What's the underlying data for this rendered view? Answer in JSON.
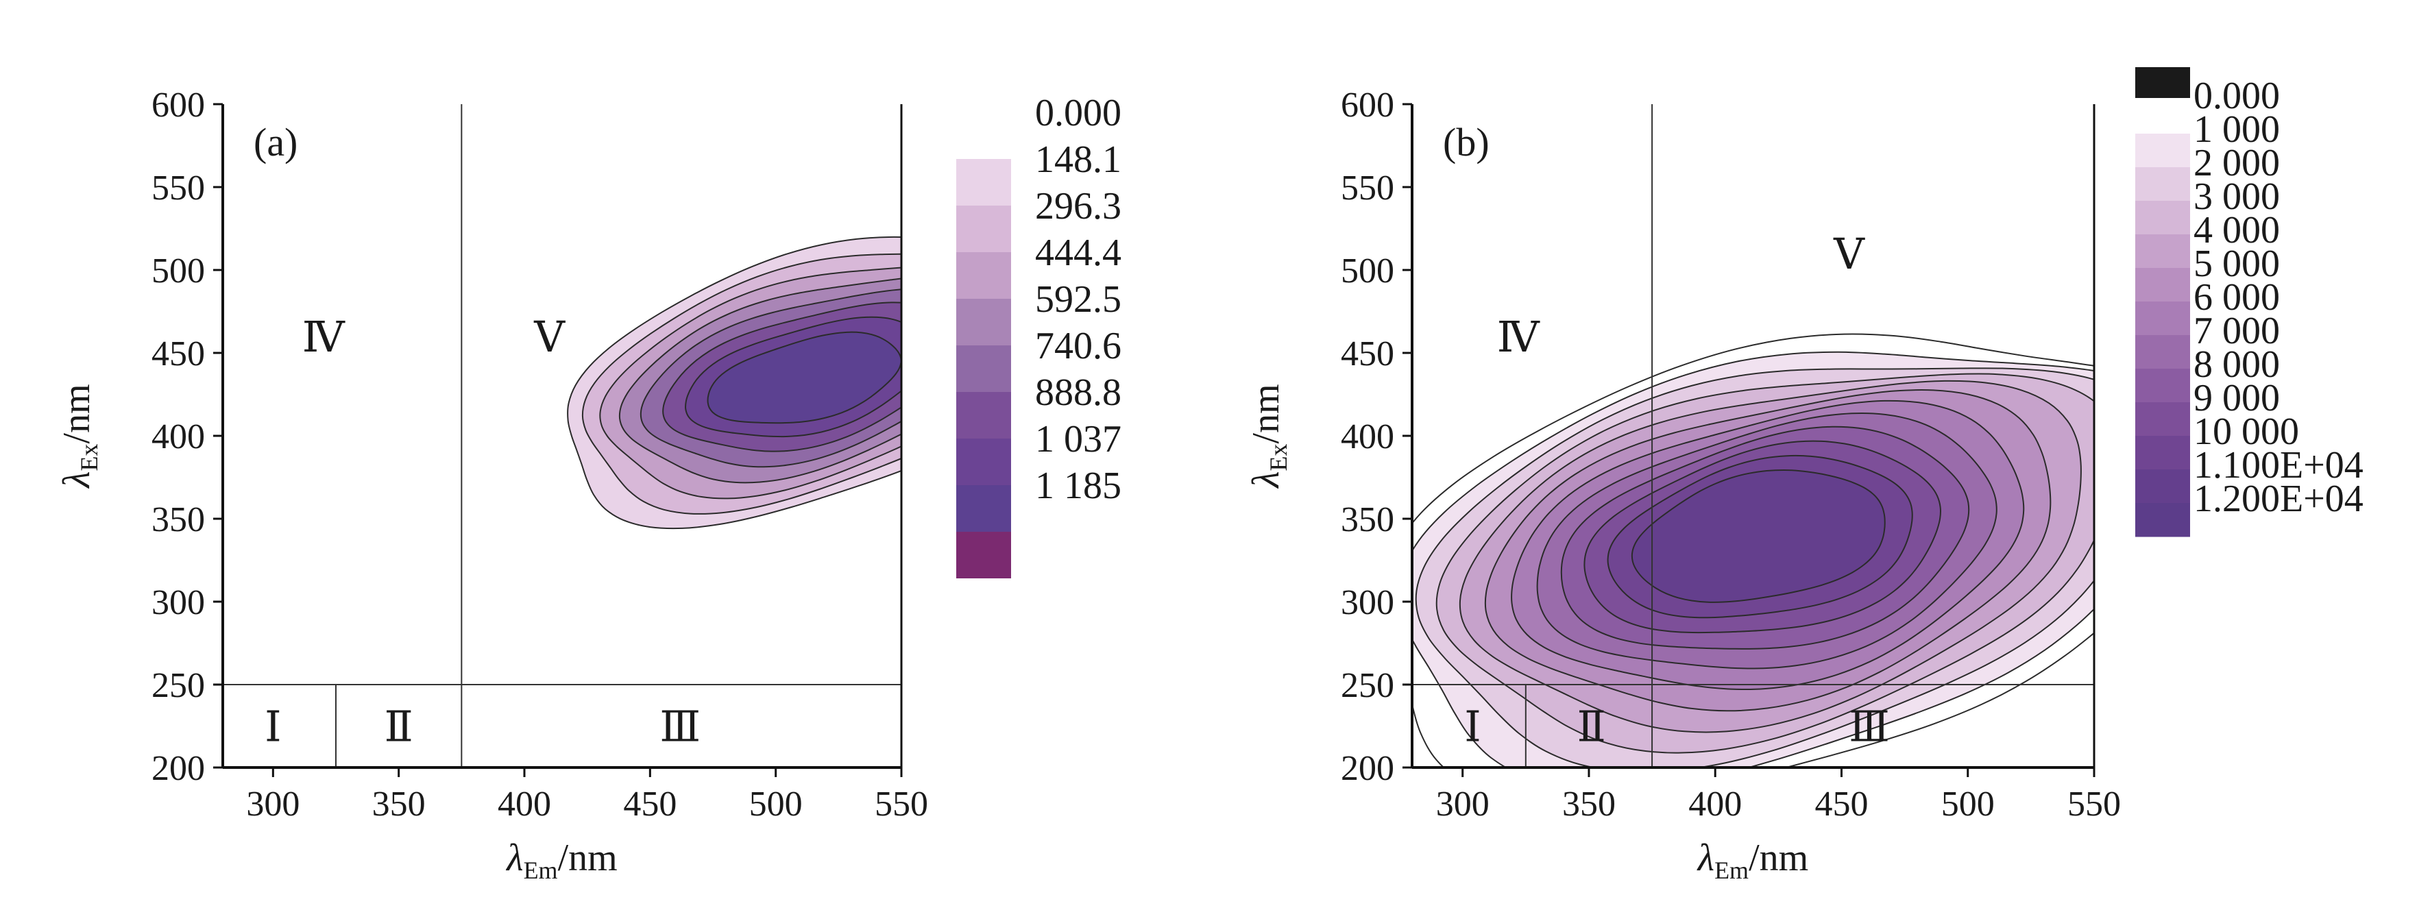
{
  "chart_data": [
    {
      "type": "contour",
      "panel_label": "(a)",
      "xlabel": "λEm/nm",
      "ylabel": "λEx/nm",
      "xlabel_main": "λ",
      "xlabel_sub": "Em",
      "xlabel_unit": "/nm",
      "ylabel_main": "λ",
      "ylabel_sub": "Ex",
      "ylabel_unit": "/nm",
      "xlim": [
        280,
        550
      ],
      "ylim": [
        200,
        600
      ],
      "xticks": [
        "300",
        "350",
        "400",
        "450",
        "500",
        "550"
      ],
      "yticks": [
        "200",
        "250",
        "300",
        "350",
        "400",
        "450",
        "500",
        "550",
        "600"
      ],
      "region_boundaries": {
        "ex": 250,
        "em": [
          325,
          375
        ]
      },
      "regions": [
        {
          "label": "Ⅰ",
          "em": 300,
          "ex": 225
        },
        {
          "label": "Ⅱ",
          "em": 350,
          "ex": 225
        },
        {
          "label": "Ⅲ",
          "em": 462,
          "ex": 225
        },
        {
          "label": "Ⅳ",
          "em": 320,
          "ex": 460
        },
        {
          "label": "Ⅴ",
          "em": 410,
          "ex": 460
        }
      ],
      "peak": {
        "em": 500,
        "ex": 430,
        "intensity": 1100
      },
      "contour_levels": [
        "0.000",
        "148.1",
        "296.3",
        "444.4",
        "592.5",
        "740.6",
        "888.8",
        "1 037",
        "1 185"
      ],
      "contour_level_values": [
        0,
        148.1,
        296.3,
        444.4,
        592.5,
        740.6,
        888.8,
        1037,
        1185
      ],
      "colorbar_colors": [
        "#ffffff",
        "#e9d3e8",
        "#d8b8d8",
        "#c4a0c8",
        "#a985b6",
        "#8f6aa6",
        "#7b4f98",
        "#6b4494",
        "#5c4191",
        "#7b2a70"
      ]
    },
    {
      "type": "contour",
      "panel_label": "(b)",
      "xlabel": "λEm/nm",
      "ylabel": "λEx/nm",
      "xlabel_main": "λ",
      "xlabel_sub": "Em",
      "xlabel_unit": "/nm",
      "ylabel_main": "λ",
      "ylabel_sub": "Ex",
      "ylabel_unit": "/nm",
      "xlim": [
        280,
        550
      ],
      "ylim": [
        200,
        600
      ],
      "xticks": [
        "300",
        "350",
        "400",
        "450",
        "500",
        "550"
      ],
      "yticks": [
        "200",
        "250",
        "300",
        "350",
        "400",
        "450",
        "500",
        "550",
        "600"
      ],
      "region_boundaries": {
        "ex": 250,
        "em": [
          325,
          375
        ]
      },
      "regions": [
        {
          "label": "Ⅰ",
          "em": 304,
          "ex": 225
        },
        {
          "label": "Ⅱ",
          "em": 351,
          "ex": 225
        },
        {
          "label": "Ⅲ",
          "em": 461,
          "ex": 225
        },
        {
          "label": "Ⅳ",
          "em": 322,
          "ex": 460
        },
        {
          "label": "Ⅴ",
          "em": 453,
          "ex": 510
        }
      ],
      "peak": {
        "em": 420,
        "ex": 340,
        "intensity": 12000
      },
      "contour_levels": [
        "0.000",
        "1 000",
        "2 000",
        "3 000",
        "4 000",
        "5 000",
        "6 000",
        "7 000",
        "8 000",
        "9 000",
        "10 000",
        "1.100E+04",
        "1.200E+04"
      ],
      "contour_level_values": [
        0,
        1000,
        2000,
        3000,
        4000,
        5000,
        6000,
        7000,
        8000,
        9000,
        10000,
        11000,
        12000
      ],
      "colorbar_colors": [
        "#1a1a1a",
        "#ffffff",
        "#f1e2f0",
        "#e3cce3",
        "#d5b7d7",
        "#c6a2cb",
        "#b88fc0",
        "#a97db6",
        "#9a6cab",
        "#8b5ca2",
        "#7d4f99",
        "#704592",
        "#643f8d",
        "#5c3d8a"
      ]
    }
  ]
}
